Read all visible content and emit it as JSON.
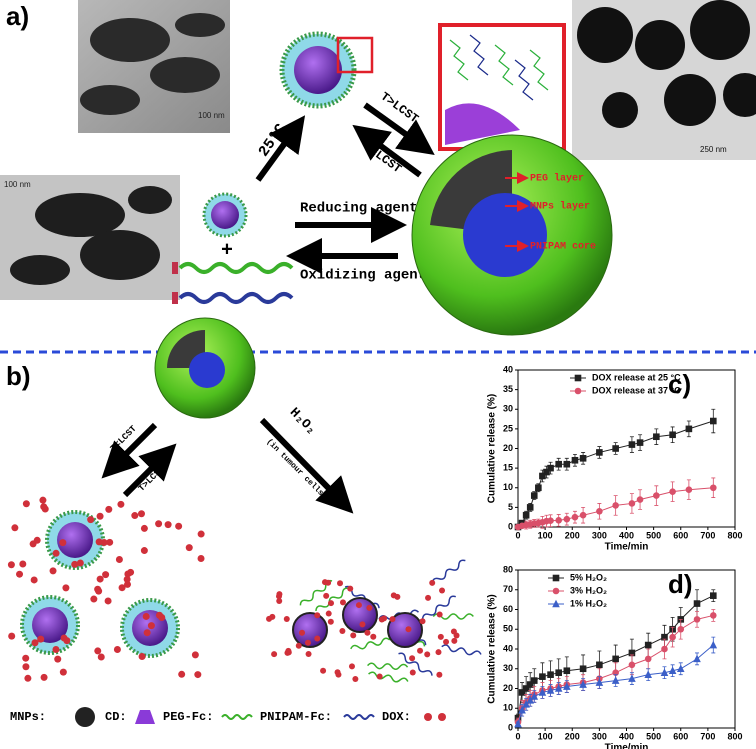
{
  "panels": {
    "a": {
      "label": "a)",
      "temp": "25°C",
      "up": "T>LCST",
      "down": "T<LCST",
      "reducing": "Reducing agent",
      "oxidizing": "Oxidizing agent",
      "plus": "+",
      "peg": "PEG layer",
      "mnps": "MNPs layer",
      "core": "PNIPAM core",
      "scale1": "100 nm",
      "scale2": "100 nm",
      "scale3": "250 nm"
    },
    "b": {
      "label": "b)",
      "down": "T<LCST",
      "up": "T>LCST",
      "h2o2": "H₂O₂",
      "cells": "(in tumour cells)",
      "legend": {
        "mnps": "MNPs:",
        "cd": "CD:",
        "peg": "PEG-Fc:",
        "pnipam": "PNIPAM-Fc:",
        "dox": "DOX:"
      }
    }
  },
  "chart_data": [
    {
      "type": "line",
      "panel_label": "c)",
      "xlabel": "Time/min",
      "ylabel": "Cumulative release (%)",
      "x": [
        0,
        15,
        30,
        45,
        60,
        75,
        90,
        105,
        120,
        150,
        180,
        210,
        240,
        300,
        360,
        420,
        450,
        510,
        570,
        630,
        720
      ],
      "series": [
        {
          "name": "DOX release at 25 °C",
          "color": "#222222",
          "marker": "square",
          "values": [
            0,
            1,
            3,
            5,
            8,
            10,
            13,
            14,
            15,
            16,
            16,
            17,
            17.5,
            19,
            20,
            21,
            21.5,
            23,
            23.5,
            25,
            27
          ],
          "errors": [
            0,
            0.5,
            1,
            1,
            1,
            1,
            1.5,
            1.5,
            1.5,
            1.5,
            1.5,
            1.5,
            1.5,
            1.5,
            1.5,
            2,
            2,
            2,
            2,
            2,
            3
          ]
        },
        {
          "name": "DOX release at 37 °C",
          "color": "#d9506a",
          "marker": "circle",
          "values": [
            0,
            0.3,
            0.5,
            0.7,
            0.9,
            1,
            1.2,
            1.5,
            1.6,
            1.7,
            2,
            2.5,
            3,
            4,
            5.5,
            6,
            7,
            8,
            9,
            9.5,
            10
          ],
          "errors": [
            0,
            0.5,
            1,
            1,
            1,
            1,
            1.5,
            1.5,
            1.5,
            1.5,
            1.5,
            1.5,
            2,
            2,
            2.5,
            2.5,
            2.5,
            2.5,
            2.5,
            2.5,
            2.5
          ]
        }
      ],
      "xlim": [
        0,
        800
      ],
      "xticks": [
        0,
        100,
        200,
        300,
        400,
        500,
        600,
        700,
        800
      ],
      "ylim": [
        0,
        40
      ],
      "yticks": [
        0,
        5,
        10,
        15,
        20,
        25,
        30,
        35,
        40
      ],
      "grid": false,
      "legend": "upper right"
    },
    {
      "type": "line",
      "panel_label": "d)",
      "xlabel": "Time/min",
      "ylabel": "Cumulative release (%)",
      "x": [
        0,
        15,
        30,
        45,
        60,
        90,
        120,
        150,
        180,
        240,
        300,
        360,
        420,
        480,
        540,
        570,
        600,
        660,
        720
      ],
      "series": [
        {
          "name": "5% H₂O₂",
          "color": "#222222",
          "marker": "square",
          "values": [
            5,
            18,
            20,
            22,
            24,
            26,
            27,
            28,
            29,
            30,
            32,
            35,
            38,
            42,
            46,
            50,
            55,
            63,
            67
          ],
          "errors": [
            2,
            5,
            6,
            6,
            6,
            7,
            7,
            7,
            7,
            7,
            7,
            7,
            7,
            6,
            6,
            6,
            6,
            7,
            3
          ]
        },
        {
          "name": "3% H₂O₂",
          "color": "#d9506a",
          "marker": "circle",
          "values": [
            3,
            10,
            13,
            15,
            17,
            19,
            20,
            21,
            22,
            23,
            25,
            28,
            32,
            35,
            40,
            46,
            50,
            55,
            57
          ],
          "errors": [
            2,
            4,
            4,
            4,
            4,
            4,
            4,
            4,
            4,
            4,
            5,
            5,
            5,
            5,
            5,
            5,
            5,
            4,
            3
          ]
        },
        {
          "name": "1% H₂O₂",
          "color": "#3b5fc8",
          "marker": "triangle",
          "values": [
            2,
            9,
            12,
            14,
            16,
            18,
            19,
            20,
            21,
            22,
            23,
            24,
            25,
            27,
            28,
            29,
            30,
            35,
            42
          ],
          "errors": [
            1,
            3,
            3,
            3,
            3,
            3,
            3,
            3,
            3,
            3,
            3,
            3,
            3,
            3,
            3,
            3,
            3,
            3,
            4
          ]
        }
      ],
      "xlim": [
        0,
        800
      ],
      "xticks": [
        0,
        100,
        200,
        300,
        400,
        500,
        600,
        700,
        800
      ],
      "ylim": [
        0,
        80
      ],
      "yticks": [
        0,
        10,
        20,
        30,
        40,
        50,
        60,
        70,
        80
      ],
      "grid": false,
      "legend": "upper left"
    }
  ]
}
